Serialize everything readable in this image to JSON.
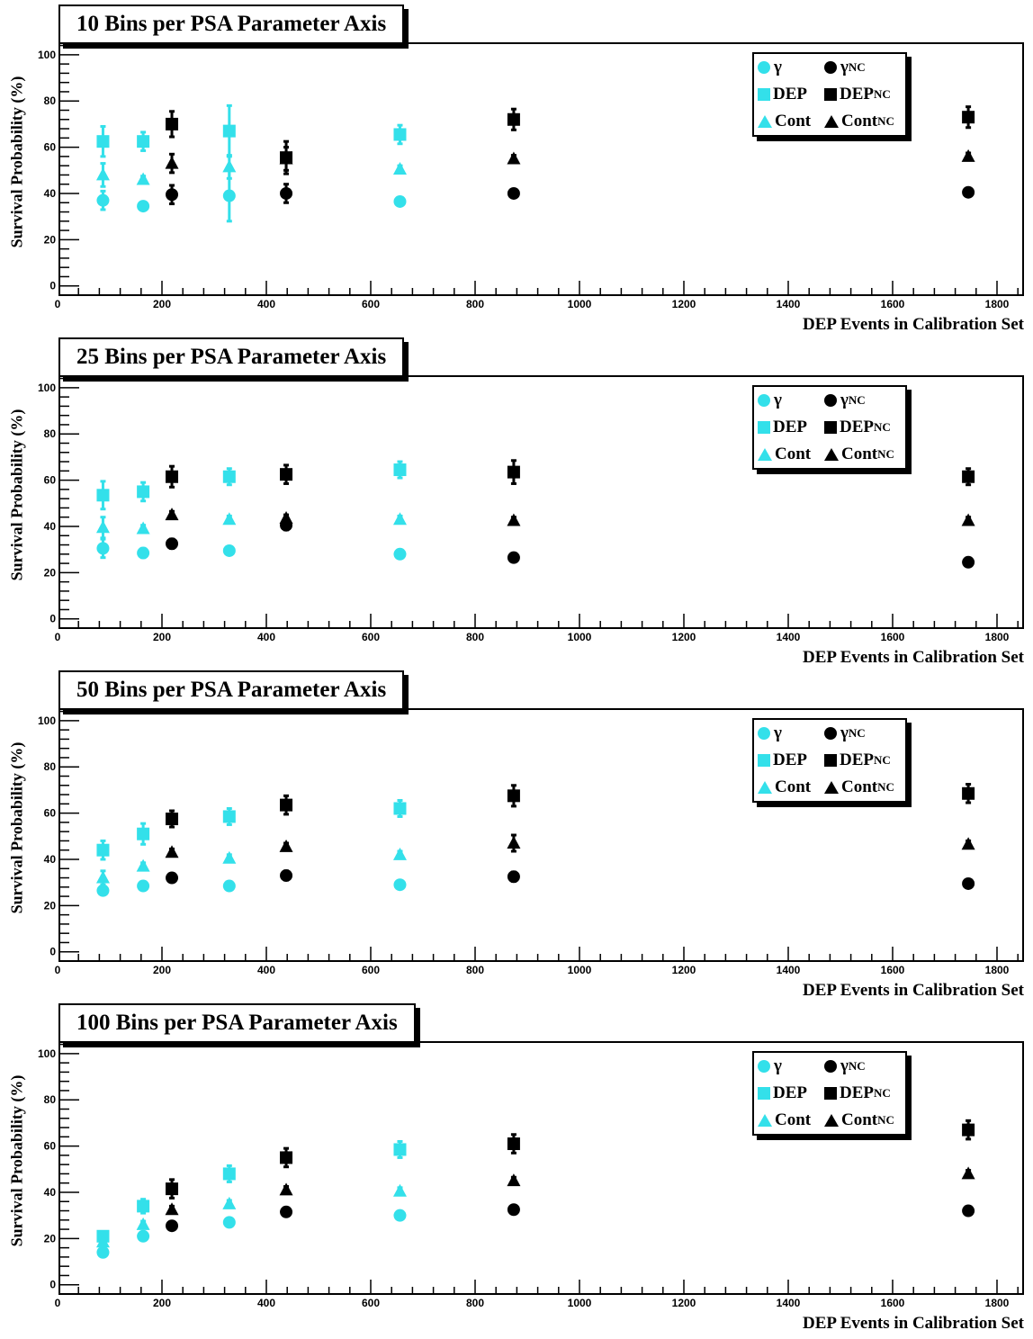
{
  "colors": {
    "calibrated": "#33e0ea",
    "nc": "#000000"
  },
  "chart_data": [
    {
      "type": "scatter",
      "title": "10 Bins per PSA Parameter Axis",
      "xlabel": "DEP Events in Calibration Set",
      "ylabel": "Survival Probability (%)",
      "xlim": [
        0,
        1850
      ],
      "ylim": [
        -4,
        105
      ],
      "xticks": [
        "0",
        "200",
        "400",
        "600",
        "800",
        "1000",
        "1200",
        "1400",
        "1600",
        "1800"
      ],
      "yticks": [
        "0",
        "20",
        "40",
        "60",
        "80",
        "100"
      ],
      "legend": [
        "γ",
        "γ",
        "DEP",
        "DEP",
        "Cont",
        "Cont"
      ],
      "legend_sub": [
        "",
        "NC",
        "",
        "NC",
        "",
        "NC"
      ],
      "series": [
        {
          "marker": "circle",
          "color": "cyan",
          "x": [
            87,
            164,
            329,
            656
          ],
          "y": [
            37,
            34.5,
            39,
            36.5
          ],
          "err": [
            4,
            1.5,
            11,
            1.5
          ]
        },
        {
          "marker": "square",
          "color": "cyan",
          "x": [
            87,
            164,
            329,
            656
          ],
          "y": [
            62.5,
            62.5,
            67,
            65.5
          ],
          "err": [
            6.5,
            4,
            11,
            4
          ]
        },
        {
          "marker": "triangle",
          "color": "cyan",
          "x": [
            87,
            164,
            329,
            656
          ],
          "y": [
            48,
            46,
            51.5,
            50.5
          ],
          "err": [
            5,
            1.5,
            5,
            1.5
          ]
        },
        {
          "marker": "circle",
          "color": "black",
          "x": [
            219,
            438,
            874,
            1745
          ],
          "y": [
            39.5,
            40,
            40,
            40.5
          ],
          "err": [
            4,
            4,
            1.5,
            1.5
          ]
        },
        {
          "marker": "square",
          "color": "black",
          "x": [
            219,
            438,
            874,
            1745
          ],
          "y": [
            70,
            55.5,
            72,
            73
          ],
          "err": [
            5.5,
            7,
            4.5,
            4.5
          ]
        },
        {
          "marker": "triangle",
          "color": "black",
          "x": [
            219,
            438,
            874,
            1745
          ],
          "y": [
            53,
            55,
            55,
            56
          ],
          "err": [
            4,
            5,
            1.5,
            1.5
          ]
        }
      ]
    },
    {
      "type": "scatter",
      "title": "25 Bins per PSA Parameter Axis",
      "xlabel": "DEP Events in Calibration Set",
      "ylabel": "Survival Probability (%)",
      "xlim": [
        0,
        1850
      ],
      "ylim": [
        -4,
        105
      ],
      "xticks": [
        "0",
        "200",
        "400",
        "600",
        "800",
        "1000",
        "1200",
        "1400",
        "1600",
        "1800"
      ],
      "yticks": [
        "0",
        "20",
        "40",
        "60",
        "80",
        "100"
      ],
      "legend": [
        "γ",
        "γ",
        "DEP",
        "DEP",
        "Cont",
        "Cont"
      ],
      "legend_sub": [
        "",
        "NC",
        "",
        "NC",
        "",
        "NC"
      ],
      "series": [
        {
          "marker": "circle",
          "color": "cyan",
          "x": [
            87,
            164,
            329,
            656
          ],
          "y": [
            30.5,
            28.5,
            29.5,
            28
          ],
          "err": [
            4,
            2,
            1.5,
            1.5
          ]
        },
        {
          "marker": "square",
          "color": "cyan",
          "x": [
            87,
            164,
            329,
            656
          ],
          "y": [
            53.5,
            55,
            61.5,
            64.5
          ],
          "err": [
            6,
            4,
            3.5,
            3.5
          ]
        },
        {
          "marker": "triangle",
          "color": "cyan",
          "x": [
            87,
            164,
            329,
            656
          ],
          "y": [
            39.5,
            39,
            43,
            43
          ],
          "err": [
            4.5,
            1.5,
            1.5,
            1.5
          ]
        },
        {
          "marker": "circle",
          "color": "black",
          "x": [
            219,
            438,
            874,
            1745
          ],
          "y": [
            32.5,
            40.5,
            26.5,
            24.5
          ],
          "err": [
            2,
            2,
            1.5,
            1.5
          ]
        },
        {
          "marker": "square",
          "color": "black",
          "x": [
            219,
            438,
            874,
            1745
          ],
          "y": [
            61.5,
            62.5,
            63.5,
            61.5
          ],
          "err": [
            4.5,
            4,
            5,
            3.5
          ]
        },
        {
          "marker": "triangle",
          "color": "black",
          "x": [
            219,
            438,
            874,
            1745
          ],
          "y": [
            45,
            43.5,
            42.5,
            42.5
          ],
          "err": [
            1.5,
            1.5,
            1.5,
            1.5
          ]
        }
      ]
    },
    {
      "type": "scatter",
      "title": "50 Bins per PSA Parameter Axis",
      "xlabel": "DEP Events in Calibration Set",
      "ylabel": "Survival Probability (%)",
      "xlim": [
        0,
        1850
      ],
      "ylim": [
        -4,
        105
      ],
      "xticks": [
        "0",
        "200",
        "400",
        "600",
        "800",
        "1000",
        "1200",
        "1400",
        "1600",
        "1800"
      ],
      "yticks": [
        "0",
        "20",
        "40",
        "60",
        "80",
        "100"
      ],
      "legend": [
        "γ",
        "γ",
        "DEP",
        "DEP",
        "Cont",
        "Cont"
      ],
      "legend_sub": [
        "",
        "NC",
        "",
        "NC",
        "",
        "NC"
      ],
      "series": [
        {
          "marker": "circle",
          "color": "cyan",
          "x": [
            87,
            164,
            329,
            656
          ],
          "y": [
            26.5,
            28.5,
            28.5,
            29
          ],
          "err": [
            1.5,
            1.5,
            1.5,
            1.5
          ]
        },
        {
          "marker": "square",
          "color": "cyan",
          "x": [
            87,
            164,
            329,
            656
          ],
          "y": [
            44,
            51,
            58.5,
            62
          ],
          "err": [
            4,
            4.5,
            3.5,
            3.5
          ]
        },
        {
          "marker": "triangle",
          "color": "cyan",
          "x": [
            87,
            164,
            329,
            656
          ],
          "y": [
            32,
            37,
            40.5,
            42
          ],
          "err": [
            3,
            1.5,
            1.5,
            1.5
          ]
        },
        {
          "marker": "circle",
          "color": "black",
          "x": [
            219,
            438,
            874,
            1745
          ],
          "y": [
            32,
            33,
            32.5,
            29.5
          ],
          "err": [
            1.5,
            2,
            2,
            1.5
          ]
        },
        {
          "marker": "square",
          "color": "black",
          "x": [
            219,
            438,
            874,
            1745
          ],
          "y": [
            57.5,
            63.5,
            67.5,
            68.5
          ],
          "err": [
            3.5,
            4,
            4.5,
            4
          ]
        },
        {
          "marker": "triangle",
          "color": "black",
          "x": [
            219,
            438,
            874,
            1745
          ],
          "y": [
            43,
            45.5,
            47,
            46.5
          ],
          "err": [
            1.5,
            1.5,
            3.5,
            1.5
          ]
        }
      ]
    },
    {
      "type": "scatter",
      "title": "100 Bins per PSA Parameter Axis",
      "xlabel": "DEP Events in Calibration Set",
      "ylabel": "Survival Probability (%)",
      "xlim": [
        0,
        1850
      ],
      "ylim": [
        -4,
        105
      ],
      "xticks": [
        "0",
        "200",
        "400",
        "600",
        "800",
        "1000",
        "1200",
        "1400",
        "1600",
        "1800"
      ],
      "yticks": [
        "0",
        "20",
        "40",
        "60",
        "80",
        "100"
      ],
      "legend": [
        "γ",
        "γ",
        "DEP",
        "DEP",
        "Cont",
        "Cont"
      ],
      "legend_sub": [
        "",
        "NC",
        "",
        "NC",
        "",
        "NC"
      ],
      "series": [
        {
          "marker": "circle",
          "color": "cyan",
          "x": [
            87,
            164,
            329,
            656
          ],
          "y": [
            14,
            21,
            27,
            30
          ],
          "err": [
            1.5,
            1.5,
            1.5,
            1.5
          ]
        },
        {
          "marker": "square",
          "color": "cyan",
          "x": [
            87,
            164,
            329,
            656
          ],
          "y": [
            21,
            34,
            48,
            58.5
          ],
          "err": [
            1.5,
            3,
            3.5,
            3.5
          ]
        },
        {
          "marker": "triangle",
          "color": "cyan",
          "x": [
            87,
            164,
            329,
            656
          ],
          "y": [
            18.5,
            26,
            35,
            40.5
          ],
          "err": [
            1.5,
            1.5,
            1.5,
            1.5
          ]
        },
        {
          "marker": "circle",
          "color": "black",
          "x": [
            219,
            438,
            874,
            1745
          ],
          "y": [
            25.5,
            31.5,
            32.5,
            32
          ],
          "err": [
            1.5,
            1.5,
            1.5,
            1.5
          ]
        },
        {
          "marker": "square",
          "color": "black",
          "x": [
            219,
            438,
            874,
            1745
          ],
          "y": [
            41.5,
            55,
            61,
            67
          ],
          "err": [
            4,
            4,
            4,
            4
          ]
        },
        {
          "marker": "triangle",
          "color": "black",
          "x": [
            219,
            438,
            874,
            1745
          ],
          "y": [
            32.5,
            41,
            45,
            48
          ],
          "err": [
            1.5,
            1.5,
            1.5,
            1.5
          ]
        }
      ]
    }
  ]
}
